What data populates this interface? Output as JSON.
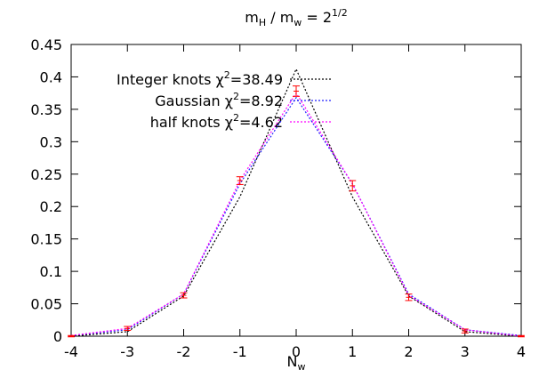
{
  "chart_data": {
    "type": "line",
    "title": [
      "m",
      "H",
      " / m",
      "w",
      " = 2",
      "1/2"
    ],
    "x_label": [
      "N",
      "w"
    ],
    "x": [
      -4,
      -3,
      -2,
      -1,
      0,
      1,
      2,
      3,
      4
    ],
    "xlim": [
      -4,
      4
    ],
    "xticks": [
      -4,
      -3,
      -2,
      -1,
      0,
      1,
      2,
      3,
      4
    ],
    "ylim": [
      0,
      0.45
    ],
    "yticks": [
      0,
      0.05,
      0.1,
      0.15,
      0.2,
      0.25,
      0.3,
      0.35,
      0.4,
      0.45
    ],
    "grid": false,
    "legend": "top-left",
    "series": [
      {
        "name": [
          "Integer knots χ",
          "2",
          "=38.49"
        ],
        "color": "#000000",
        "values": [
          0,
          0.007,
          0.062,
          0.215,
          0.412,
          0.215,
          0.062,
          0.007,
          0
        ]
      },
      {
        "name": [
          "Gaussian χ",
          "2",
          "=8.92"
        ],
        "color": "#2020ff",
        "values": [
          0.001,
          0.01,
          0.065,
          0.235,
          0.368,
          0.235,
          0.065,
          0.01,
          0.001
        ]
      },
      {
        "name": [
          "half knots χ",
          "2",
          "=4.62"
        ],
        "color": "#ff00ff",
        "values": [
          0.001,
          0.012,
          0.065,
          0.24,
          0.375,
          0.235,
          0.063,
          0.01,
          0
        ]
      }
    ],
    "points": {
      "color": "#ff0000",
      "values": [
        0,
        0.012,
        0.063,
        0.24,
        0.378,
        0.232,
        0.06,
        0.008,
        0
      ],
      "errors": [
        0.001,
        0.003,
        0.004,
        0.006,
        0.008,
        0.008,
        0.005,
        0.003,
        0.001
      ]
    }
  }
}
